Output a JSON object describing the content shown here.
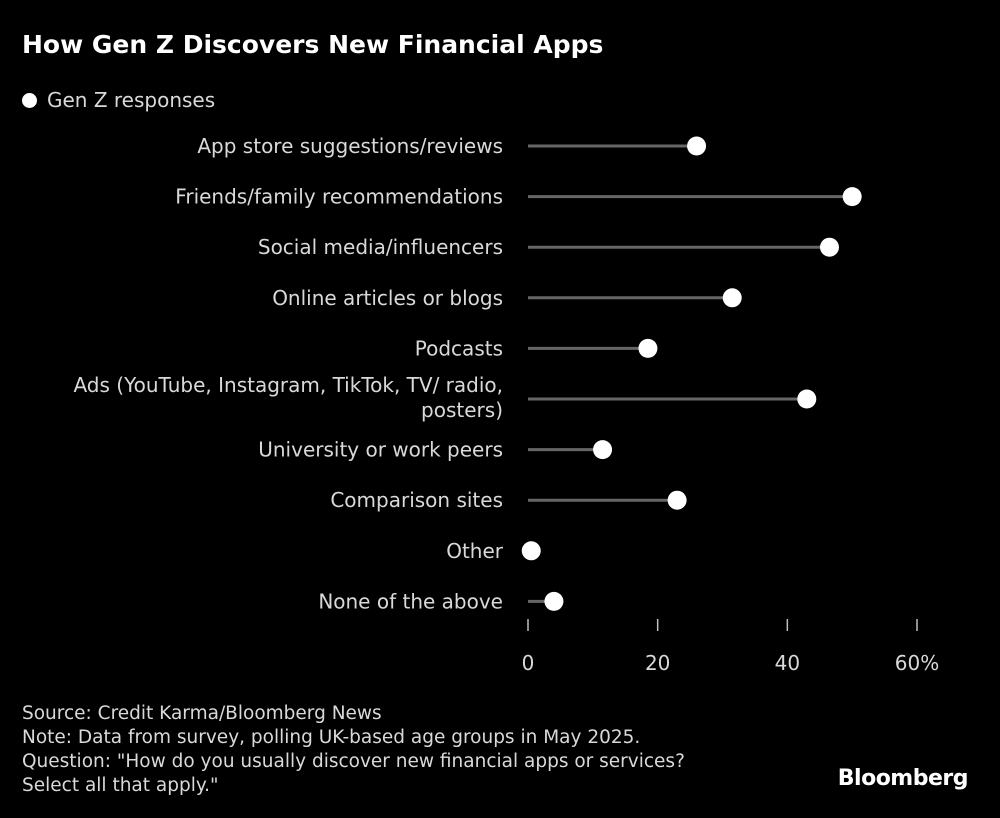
{
  "title": "How Gen Z Discovers New Financial Apps",
  "legend": {
    "label": "Gen Z responses"
  },
  "chart_data": {
    "type": "lollipop",
    "title": "How Gen Z Discovers New Financial Apps",
    "categories": [
      [
        "App store suggestions/reviews"
      ],
      [
        "Friends/family recommendations"
      ],
      [
        "Social media/influencers"
      ],
      [
        "Online articles or blogs"
      ],
      [
        "Podcasts"
      ],
      [
        "Ads (YouTube, Instagram, TikTok, TV/ radio,",
        "posters)"
      ],
      [
        "University or work peers"
      ],
      [
        "Comparison sites"
      ],
      [
        "Other"
      ],
      [
        "None of the above"
      ]
    ],
    "series": [
      {
        "name": "Gen Z responses",
        "values": [
          26,
          50,
          46.5,
          31.5,
          18.5,
          43,
          11.5,
          23,
          0.5,
          4
        ]
      }
    ],
    "xlim": [
      0,
      60
    ],
    "ticks": [
      0,
      20,
      40,
      60
    ],
    "tick_labels": [
      "0",
      "20",
      "40",
      "60%"
    ],
    "colors": {
      "background": "#000000",
      "dot": "#ffffff",
      "stem": "#666666",
      "text": "#ffffff"
    }
  },
  "footer": {
    "source": "Source: Credit Karma/Bloomberg News",
    "note": "Note: Data from survey, polling UK-based age groups in May 2025.",
    "question_line1": "Question: \"How do you usually discover new financial apps or services?",
    "question_line2": "Select all that apply.\""
  },
  "brand": "Bloomberg"
}
